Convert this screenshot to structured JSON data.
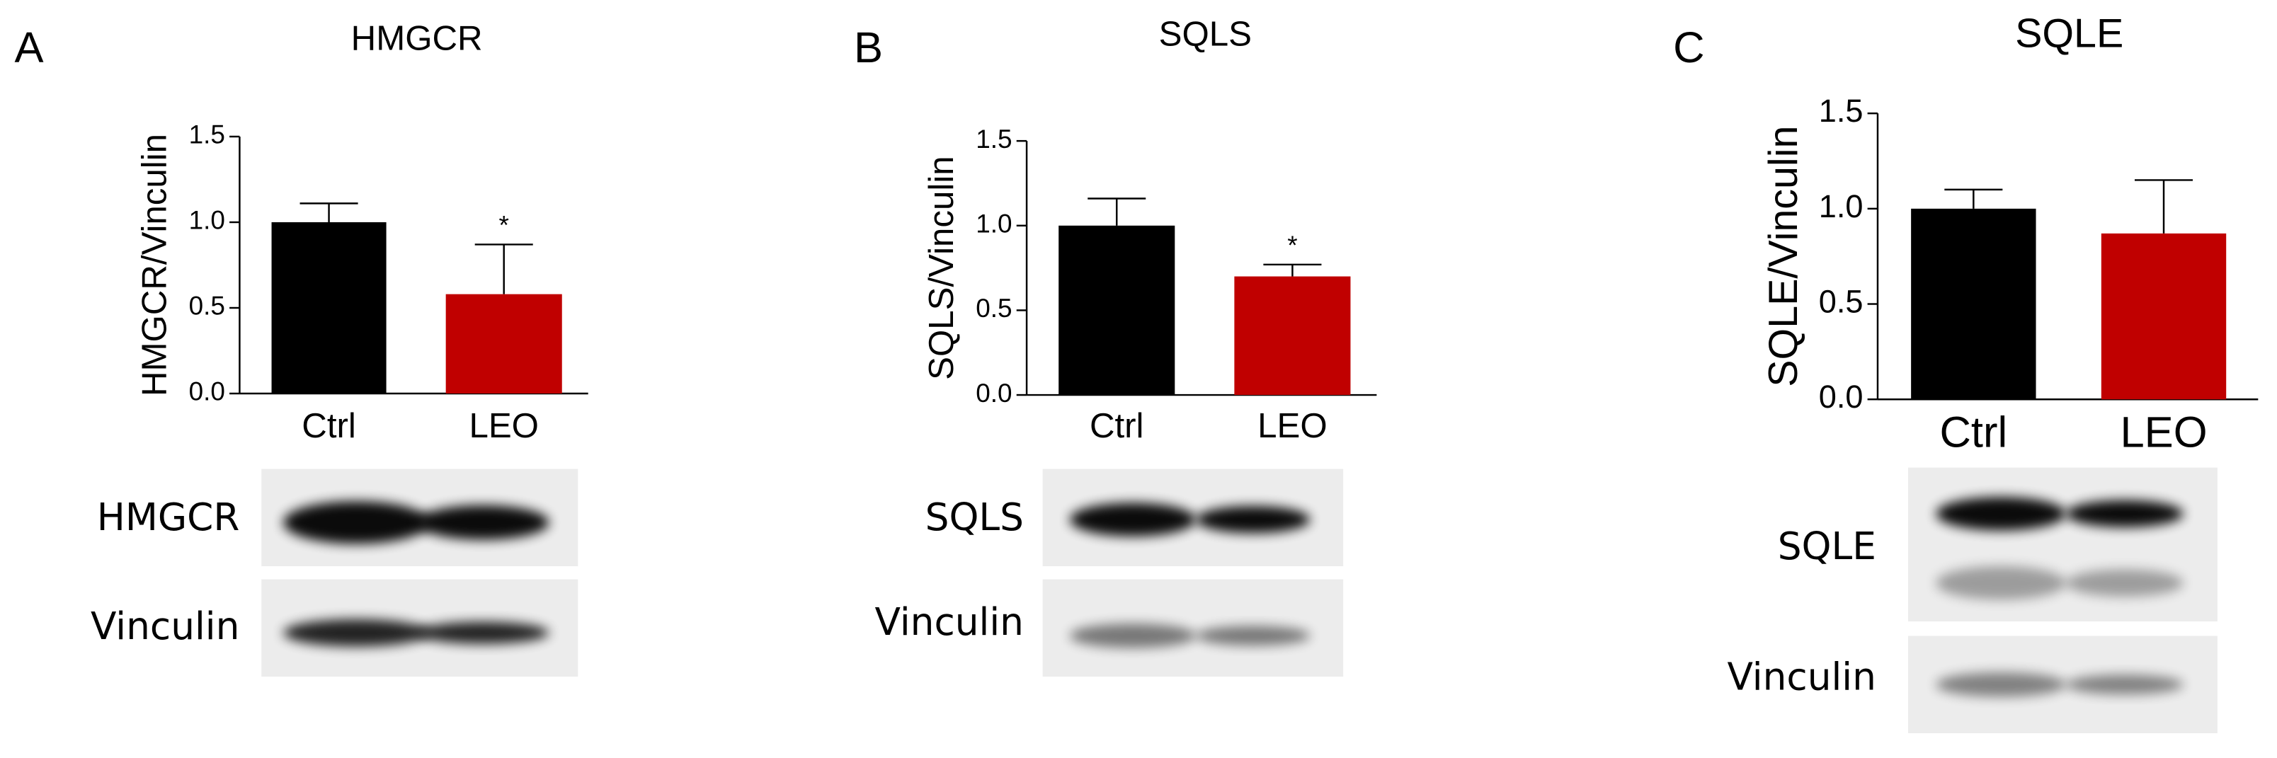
{
  "chart_data": [
    {
      "type": "bar",
      "panel": "A",
      "title": "HMGCR",
      "ylabel": "HMGCR/Vinculin",
      "categories": [
        "Ctrl",
        "LEO"
      ],
      "values": [
        1.0,
        0.58
      ],
      "errors": [
        0.11,
        0.29
      ],
      "colors": [
        "#000000",
        "#c00000"
      ],
      "annotations": [
        null,
        "*"
      ],
      "ylim": [
        0,
        1.5
      ],
      "yticks": [
        {
          "value": 0,
          "label": "0.0"
        },
        {
          "value": 0.5,
          "label": "0.5"
        },
        {
          "value": 1,
          "label": "1.0"
        },
        {
          "value": 1.5,
          "label": "1.5"
        }
      ],
      "blot_labels": [
        "HMGCR",
        "Vinculin"
      ]
    },
    {
      "type": "bar",
      "panel": "B",
      "title": "SQLS",
      "ylabel": "SQLS/Vinculin",
      "categories": [
        "Ctrl",
        "LEO"
      ],
      "values": [
        1.0,
        0.7
      ],
      "errors": [
        0.16,
        0.07
      ],
      "colors": [
        "#000000",
        "#c00000"
      ],
      "annotations": [
        null,
        "*"
      ],
      "ylim": [
        0,
        1.5
      ],
      "yticks": [
        {
          "value": 0,
          "label": "0.0"
        },
        {
          "value": 0.5,
          "label": "0.5"
        },
        {
          "value": 1,
          "label": "1.0"
        },
        {
          "value": 1.5,
          "label": "1.5"
        }
      ],
      "blot_labels": [
        "SQLS",
        "Vinculin"
      ]
    },
    {
      "type": "bar",
      "panel": "C",
      "title": "SQLE",
      "ylabel": "SQLE/Vinculin",
      "categories": [
        "Ctrl",
        "LEO"
      ],
      "values": [
        1.0,
        0.87
      ],
      "errors": [
        0.1,
        0.28
      ],
      "colors": [
        "#000000",
        "#c00000"
      ],
      "annotations": [
        null,
        null
      ],
      "ylim": [
        0,
        1.5
      ],
      "yticks": [
        {
          "value": 0,
          "label": "0.0"
        },
        {
          "value": 0.5,
          "label": "0.5"
        },
        {
          "value": 1,
          "label": "1.0"
        },
        {
          "value": 1.5,
          "label": "1.5"
        }
      ],
      "blot_labels": [
        "SQLE",
        "Vinculin"
      ]
    }
  ]
}
